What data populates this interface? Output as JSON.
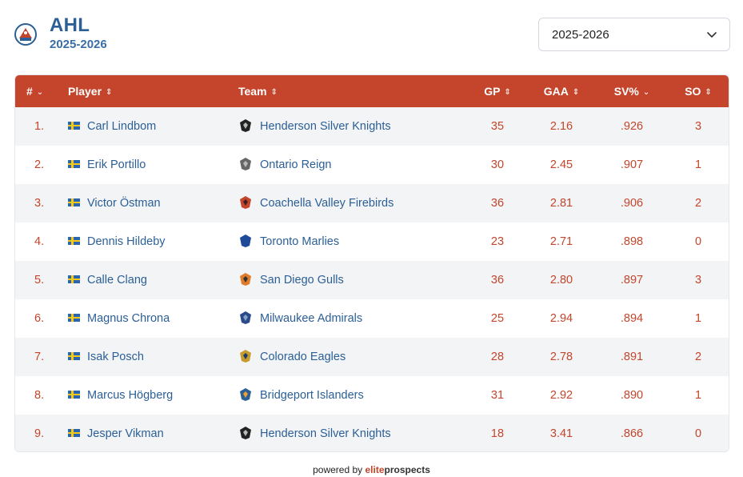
{
  "league": {
    "title": "AHL",
    "season": "2025-2026",
    "logo_icon": "ahl-logo-icon"
  },
  "season_select": {
    "value": "2025-2026",
    "icon": "chevron-down-icon"
  },
  "table": {
    "columns": [
      {
        "label": "#",
        "sort_icon": "chevron-down-icon"
      },
      {
        "label": "Player",
        "sort_icon": "sort-icon"
      },
      {
        "label": "Team",
        "sort_icon": "sort-icon"
      },
      {
        "label": "GP",
        "sort_icon": "sort-icon"
      },
      {
        "label": "GAA",
        "sort_icon": "sort-icon"
      },
      {
        "label": "SV%",
        "sort_icon": "chevron-down-icon"
      },
      {
        "label": "SO",
        "sort_icon": "sort-icon"
      }
    ],
    "rows": [
      {
        "rank": "1.",
        "player": "Carl Lindbom",
        "team": "Henderson Silver Knights",
        "team_icon": "henderson-logo-icon",
        "gp": "35",
        "gaa": "2.16",
        "svp": ".926",
        "so": "3"
      },
      {
        "rank": "2.",
        "player": "Erik Portillo",
        "team": "Ontario Reign",
        "team_icon": "ontario-logo-icon",
        "gp": "30",
        "gaa": "2.45",
        "svp": ".907",
        "so": "1"
      },
      {
        "rank": "3.",
        "player": "Victor Östman",
        "team": "Coachella Valley Firebirds",
        "team_icon": "coachella-logo-icon",
        "gp": "36",
        "gaa": "2.81",
        "svp": ".906",
        "so": "2"
      },
      {
        "rank": "4.",
        "player": "Dennis Hildeby",
        "team": "Toronto Marlies",
        "team_icon": "toronto-logo-icon",
        "gp": "23",
        "gaa": "2.71",
        "svp": ".898",
        "so": "0"
      },
      {
        "rank": "5.",
        "player": "Calle Clang",
        "team": "San Diego Gulls",
        "team_icon": "sandiego-logo-icon",
        "gp": "36",
        "gaa": "2.80",
        "svp": ".897",
        "so": "3"
      },
      {
        "rank": "6.",
        "player": "Magnus Chrona",
        "team": "Milwaukee Admirals",
        "team_icon": "milwaukee-logo-icon",
        "gp": "25",
        "gaa": "2.94",
        "svp": ".894",
        "so": "1"
      },
      {
        "rank": "7.",
        "player": "Isak Posch",
        "team": "Colorado Eagles",
        "team_icon": "colorado-logo-icon",
        "gp": "28",
        "gaa": "2.78",
        "svp": ".891",
        "so": "2"
      },
      {
        "rank": "8.",
        "player": "Marcus Högberg",
        "team": "Bridgeport Islanders",
        "team_icon": "bridgeport-logo-icon",
        "gp": "31",
        "gaa": "2.92",
        "svp": ".890",
        "so": "1"
      },
      {
        "rank": "9.",
        "player": "Jesper Vikman",
        "team": "Henderson Silver Knights",
        "team_icon": "henderson-logo-icon",
        "gp": "18",
        "gaa": "3.41",
        "svp": ".866",
        "so": "0"
      }
    ],
    "flag_icon": "sweden-flag-icon"
  },
  "footer": {
    "prefix": "powered by",
    "brand_a": "elite",
    "brand_b": "prospects"
  },
  "colors": {
    "accent": "#c4452c",
    "link": "#2b5f96",
    "row_alt": "#f3f4f6"
  }
}
